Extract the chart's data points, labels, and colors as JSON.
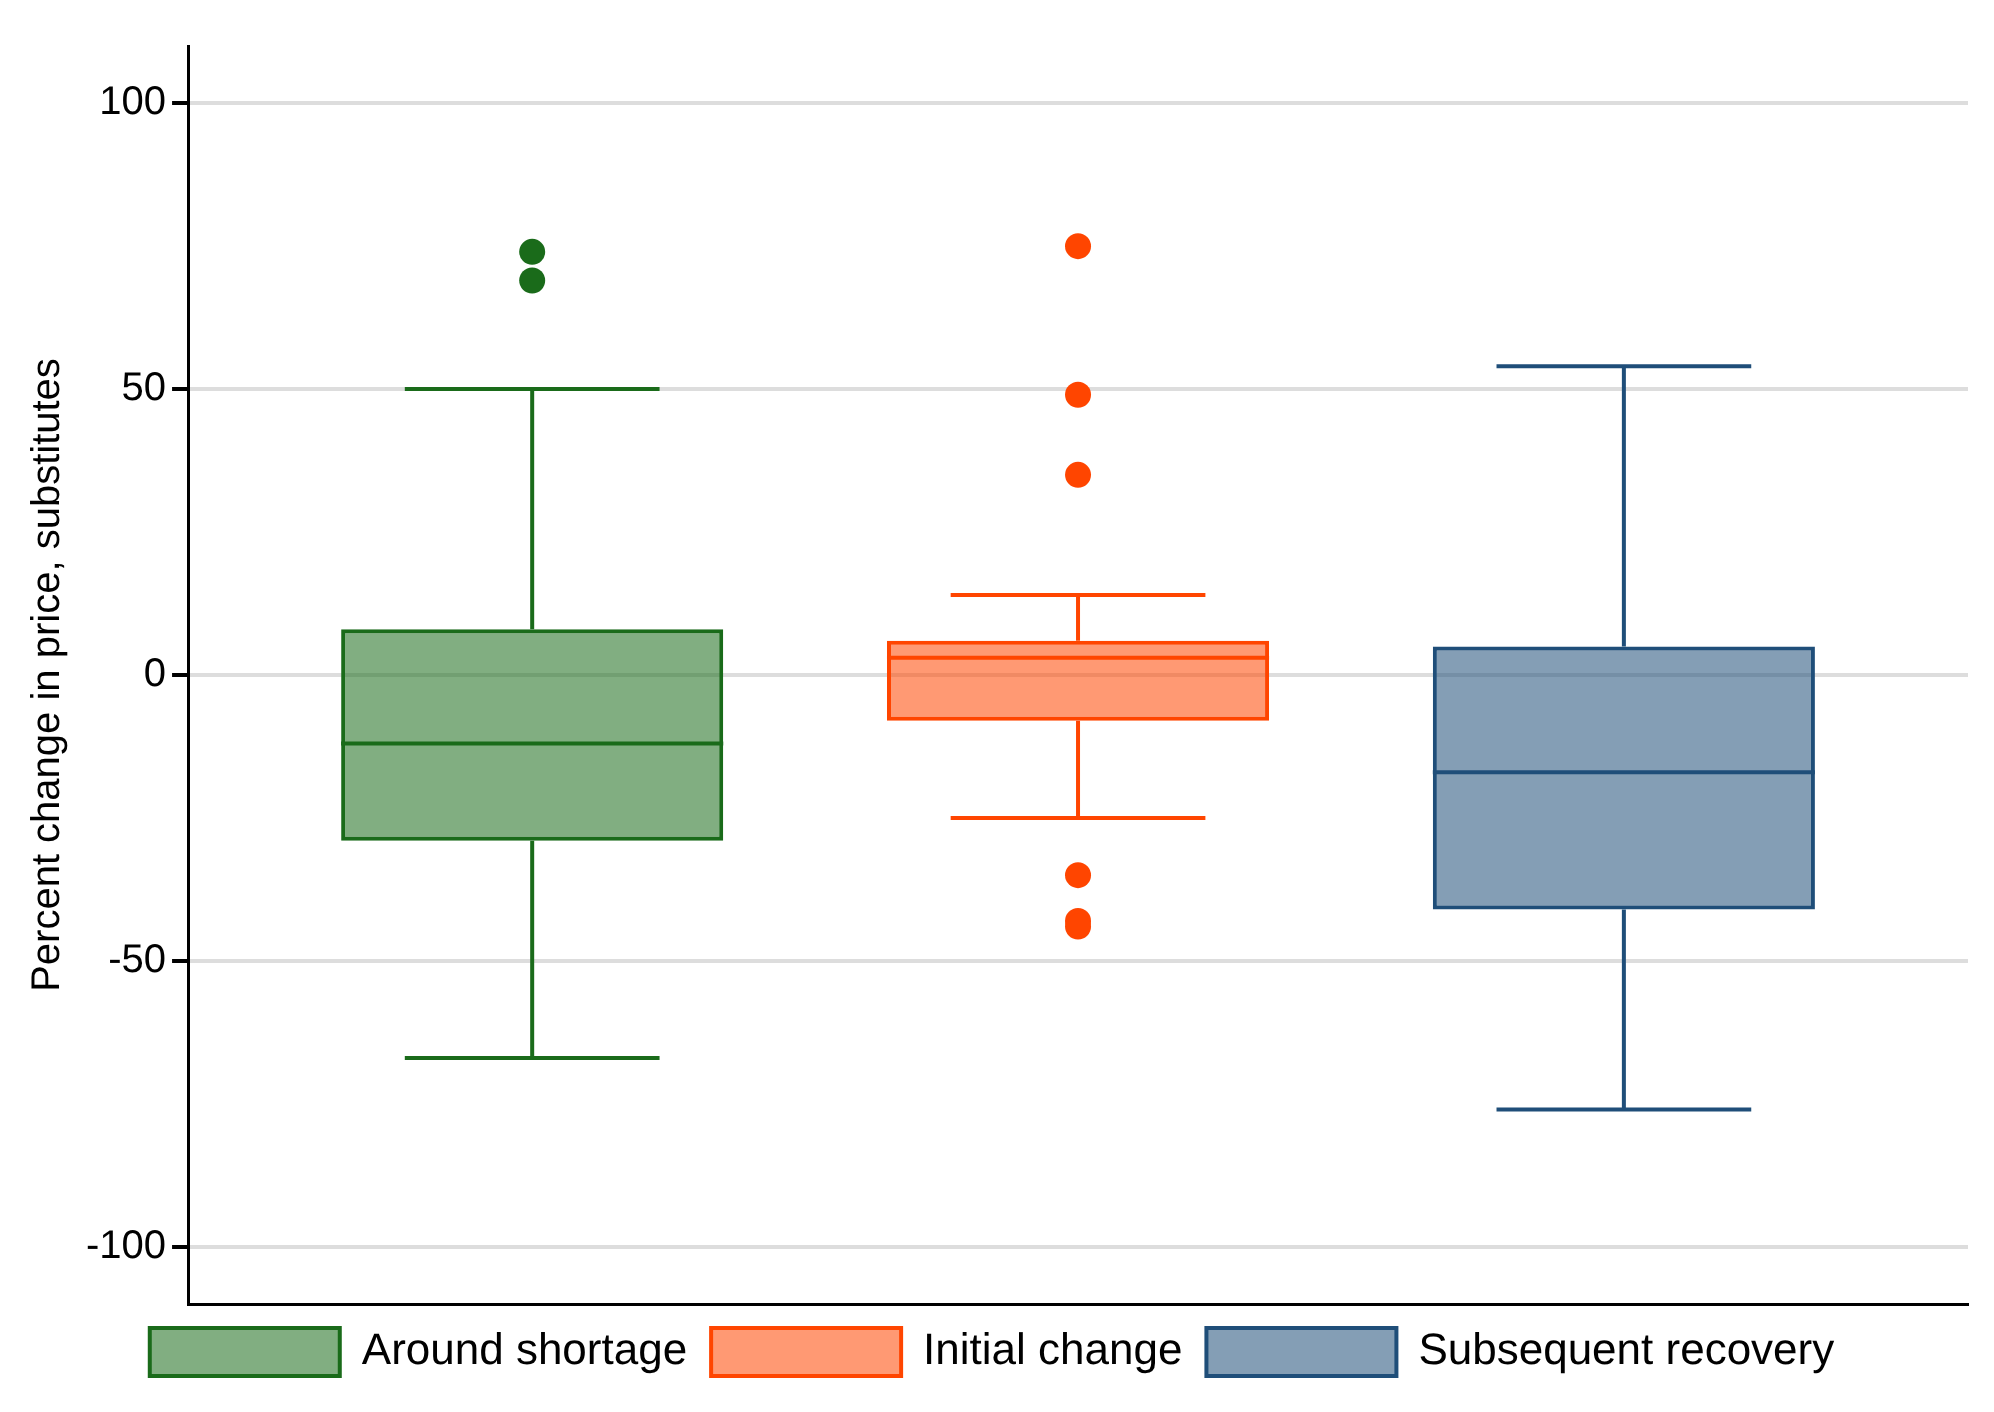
{
  "chart_data": {
    "type": "box",
    "ylabel": "Percent change in price, substitutes",
    "categories": [
      null
    ],
    "series": [
      {
        "name": "Around shortage",
        "color": "#1a6b1a",
        "boxes": [
          {
            "low": -67,
            "q1": -29,
            "median": -12,
            "q3": 8,
            "high": 50,
            "outliers": [
              74,
              69
            ]
          }
        ]
      },
      {
        "name": "Initial change",
        "color": "#ff4500",
        "boxes": [
          {
            "low": -25,
            "q1": -8,
            "median": 3,
            "q3": 6,
            "high": 14,
            "outliers": [
              75,
              49,
              35,
              -35,
              -43,
              -44
            ]
          }
        ]
      },
      {
        "name": "Subsequent recovery",
        "color": "#1f4e79",
        "boxes": [
          {
            "low": -76,
            "q1": -41,
            "median": -17,
            "q3": 5,
            "high": 54
          }
        ]
      }
    ],
    "ylim": [
      -110,
      110
    ],
    "yticks": [
      -100,
      -50,
      0,
      50,
      100
    ],
    "grid": "y",
    "legend": "bottom",
    "tick_labels": "y"
  }
}
